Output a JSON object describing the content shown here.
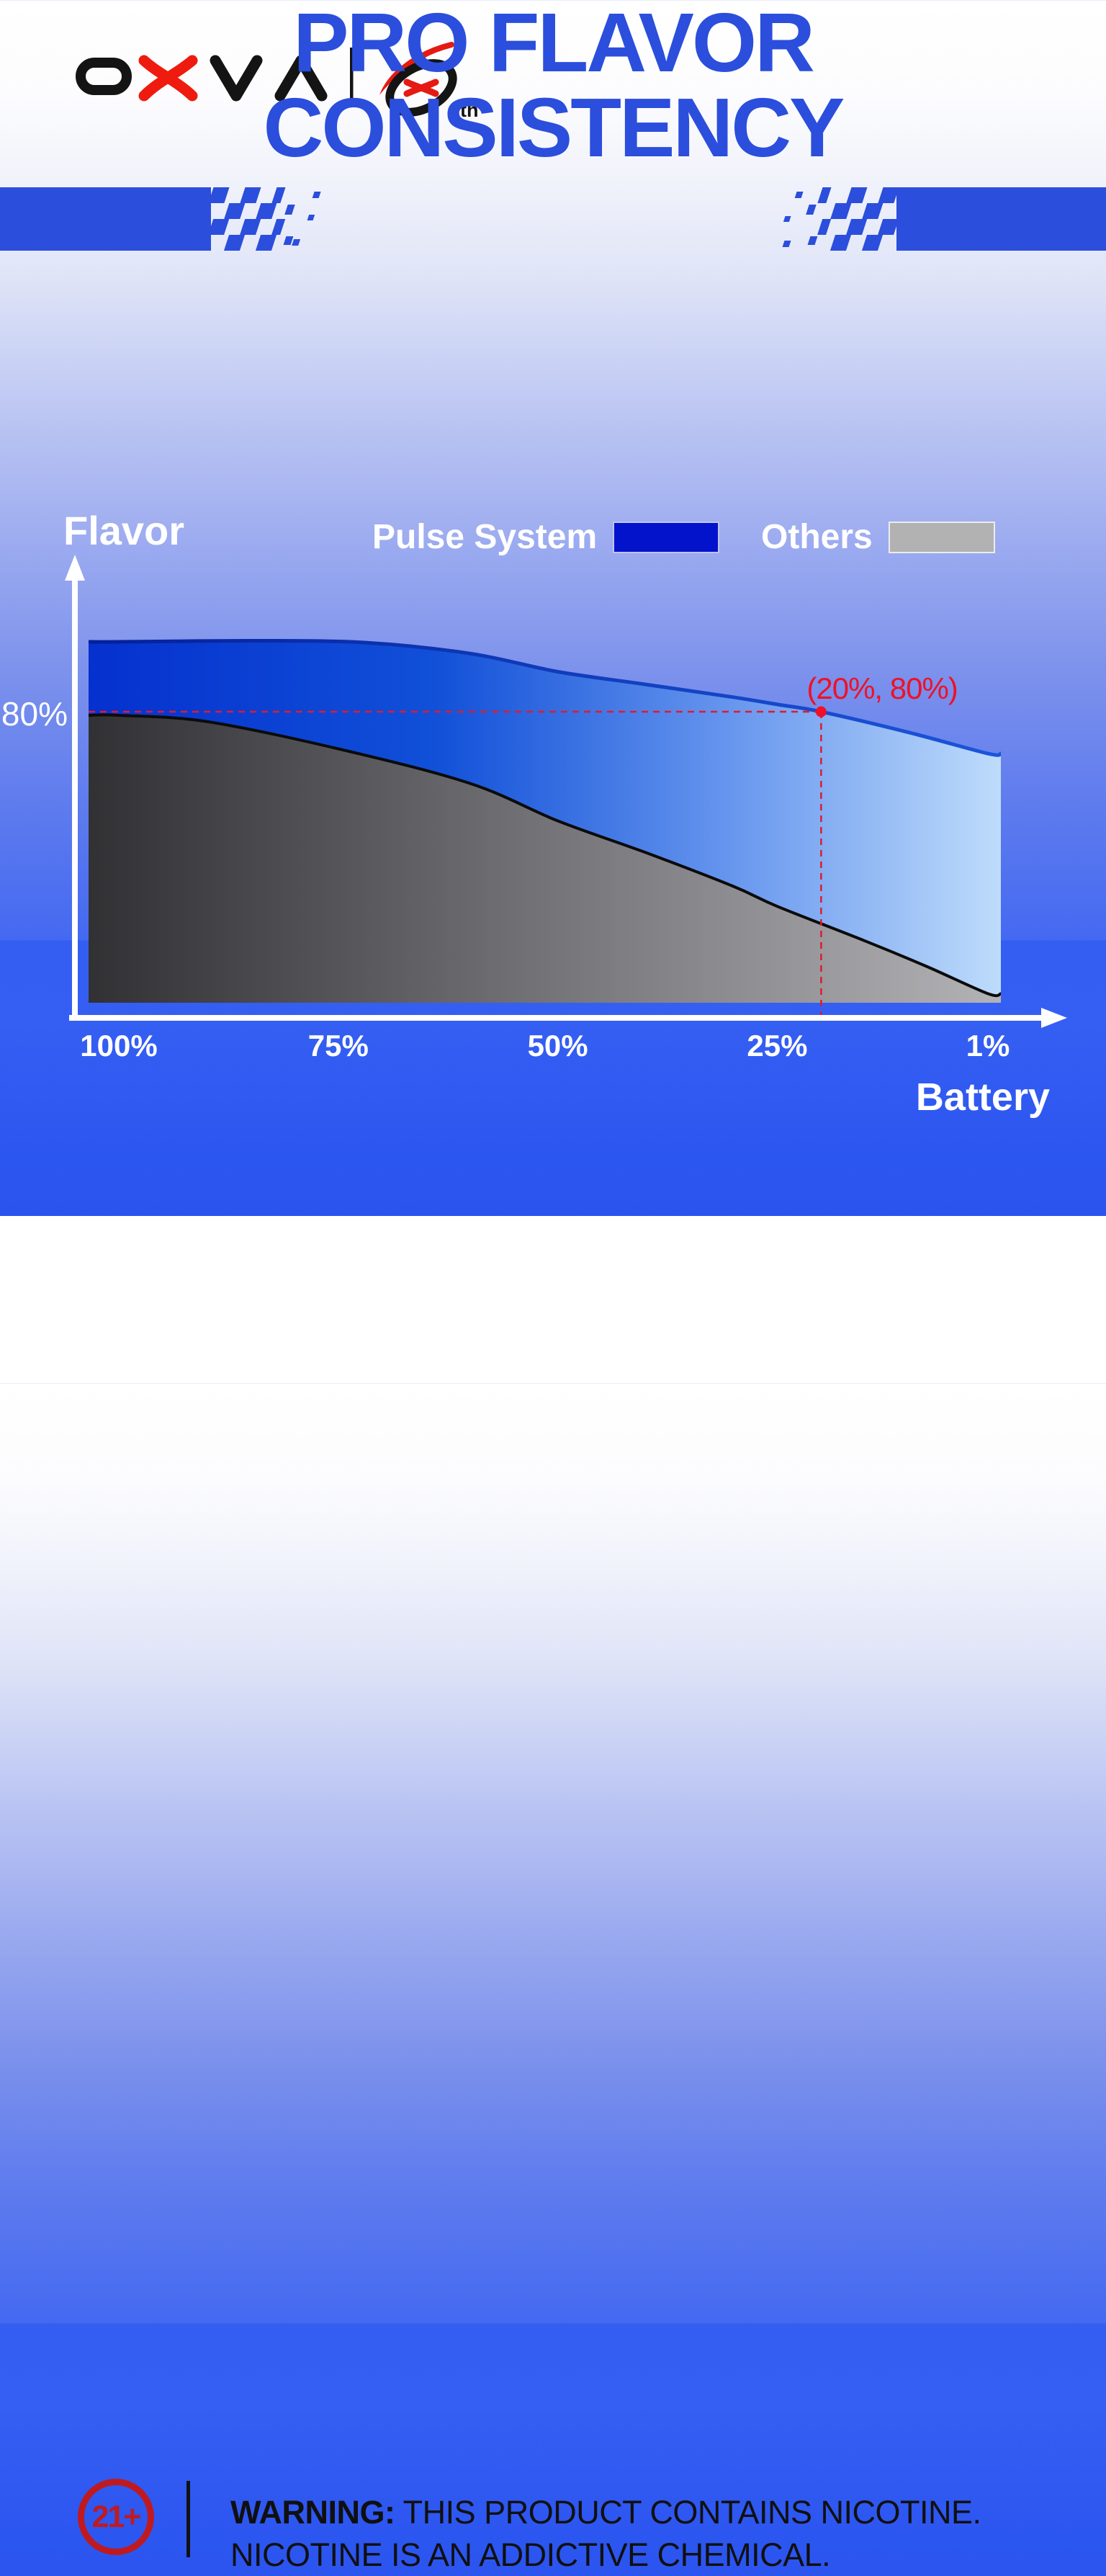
{
  "brand": {
    "name": "OXVA",
    "anniversary_suffix": "th"
  },
  "title": {
    "line1": "PRO FLAVOR",
    "line2": "CONSISTENCY"
  },
  "colors": {
    "brand_blue": "#2b4edc",
    "pulse_blue": "#0313cc",
    "others_gray": "#b2b2b2",
    "accent_red": "#ef1128",
    "badge_red": "#bf1a20",
    "axis_white": "#ffffff"
  },
  "legend": [
    {
      "label": "Pulse System",
      "color": "#0313cc"
    },
    {
      "label": "Others",
      "color": "#b2b2b2"
    }
  ],
  "axis": {
    "y_label": "Flavor",
    "x_label": "Battery",
    "y_tick": "80%",
    "x_ticks": [
      "100%",
      "75%",
      "50%",
      "25%",
      "1%"
    ]
  },
  "chart_data": {
    "type": "area",
    "title": "PRO FLAVOR CONSISTENCY",
    "xlabel": "Battery",
    "ylabel": "Flavor",
    "x_axis_reversed": true,
    "xlim": [
      100,
      1
    ],
    "ylim": [
      0,
      100
    ],
    "grid": false,
    "legend_position": "top",
    "x_tick_values": [
      100,
      75,
      50,
      25,
      1
    ],
    "x_tick_labels": [
      "100%",
      "75%",
      "50%",
      "25%",
      "1%"
    ],
    "y_tick_values": [
      80
    ],
    "y_tick_labels": [
      "80%"
    ],
    "series": [
      {
        "name": "Pulse System",
        "color": "#0313cc",
        "points": [
          [
            100,
            99.2
          ],
          [
            85,
            99.5
          ],
          [
            72,
            99
          ],
          [
            60,
            96
          ],
          [
            50,
            91
          ],
          [
            40,
            87.5
          ],
          [
            30,
            84
          ],
          [
            25,
            82
          ],
          [
            20,
            80
          ],
          [
            10,
            74.3
          ],
          [
            1,
            68.5
          ]
        ]
      },
      {
        "name": "Others",
        "color": "#b2b2b2",
        "points": [
          [
            100,
            79
          ],
          [
            90,
            77.3
          ],
          [
            75,
            69.8
          ],
          [
            60,
            60.3
          ],
          [
            50,
            50
          ],
          [
            40,
            41.3
          ],
          [
            30,
            32
          ],
          [
            25,
            26.5
          ],
          [
            15,
            17
          ],
          [
            8,
            10
          ],
          [
            1,
            2.5
          ]
        ]
      }
    ],
    "annotation": {
      "label": "(20%, 80%)",
      "battery": 20,
      "flavor": 80
    }
  },
  "footer": {
    "age_badge": "21+",
    "warning_bold": "WARNING:",
    "warning_line1_rest": " THIS PRODUCT CONTAINS NICOTINE.",
    "warning_line2": "NICOTINE IS AN ADDICTIVE CHEMICAL."
  }
}
